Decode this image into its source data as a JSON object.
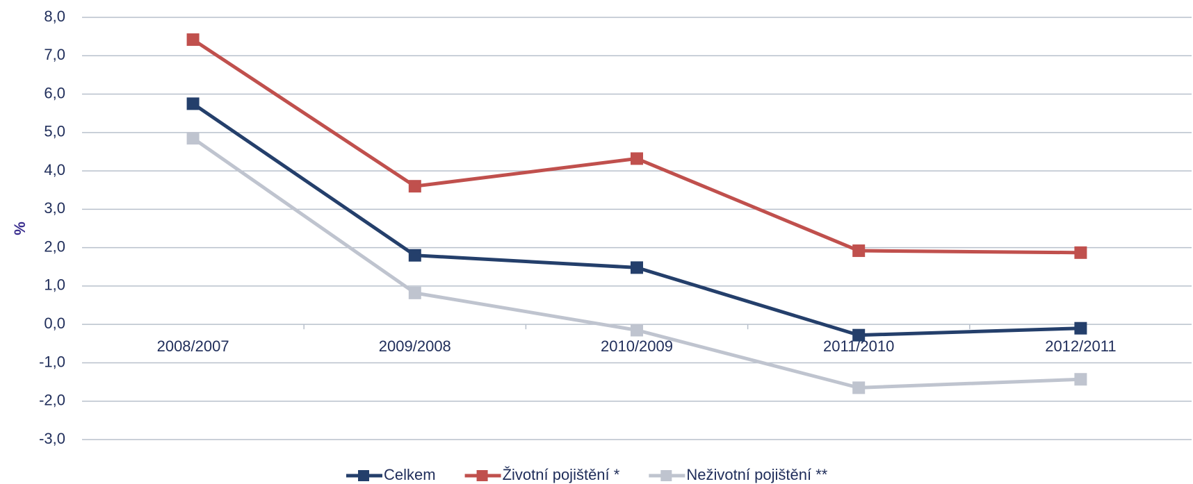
{
  "chart_data": {
    "type": "line",
    "y_label": "%",
    "categories": [
      "2008/2007",
      "2009/2008",
      "2010/2009",
      "2011/2010",
      "2012/2011"
    ],
    "series": [
      {
        "name": "Celkem",
        "color": "#243f6b",
        "values": [
          5.75,
          1.8,
          1.48,
          -0.28,
          -0.1
        ]
      },
      {
        "name": "Životní pojištění *",
        "color": "#c0504d",
        "values": [
          7.42,
          3.6,
          4.32,
          1.92,
          1.87
        ]
      },
      {
        "name": "Neživotní pojištění **",
        "color": "#bfc4cf",
        "values": [
          4.85,
          0.82,
          -0.15,
          -1.65,
          -1.43
        ]
      }
    ],
    "ylim": [
      -3,
      8
    ],
    "yticks": [
      {
        "value": -3,
        "label": "-3,0"
      },
      {
        "value": -2,
        "label": "-2,0"
      },
      {
        "value": -1,
        "label": "-1,0"
      },
      {
        "value": 0,
        "label": "0,0"
      },
      {
        "value": 1,
        "label": "1,0"
      },
      {
        "value": 2,
        "label": "2,0"
      },
      {
        "value": 3,
        "label": "3,0"
      },
      {
        "value": 4,
        "label": "4,0"
      },
      {
        "value": 5,
        "label": "5,0"
      },
      {
        "value": 6,
        "label": "6,0"
      },
      {
        "value": 7,
        "label": "7,0"
      },
      {
        "value": 8,
        "label": "8,0"
      }
    ],
    "grid": true,
    "legend": "bottom"
  }
}
